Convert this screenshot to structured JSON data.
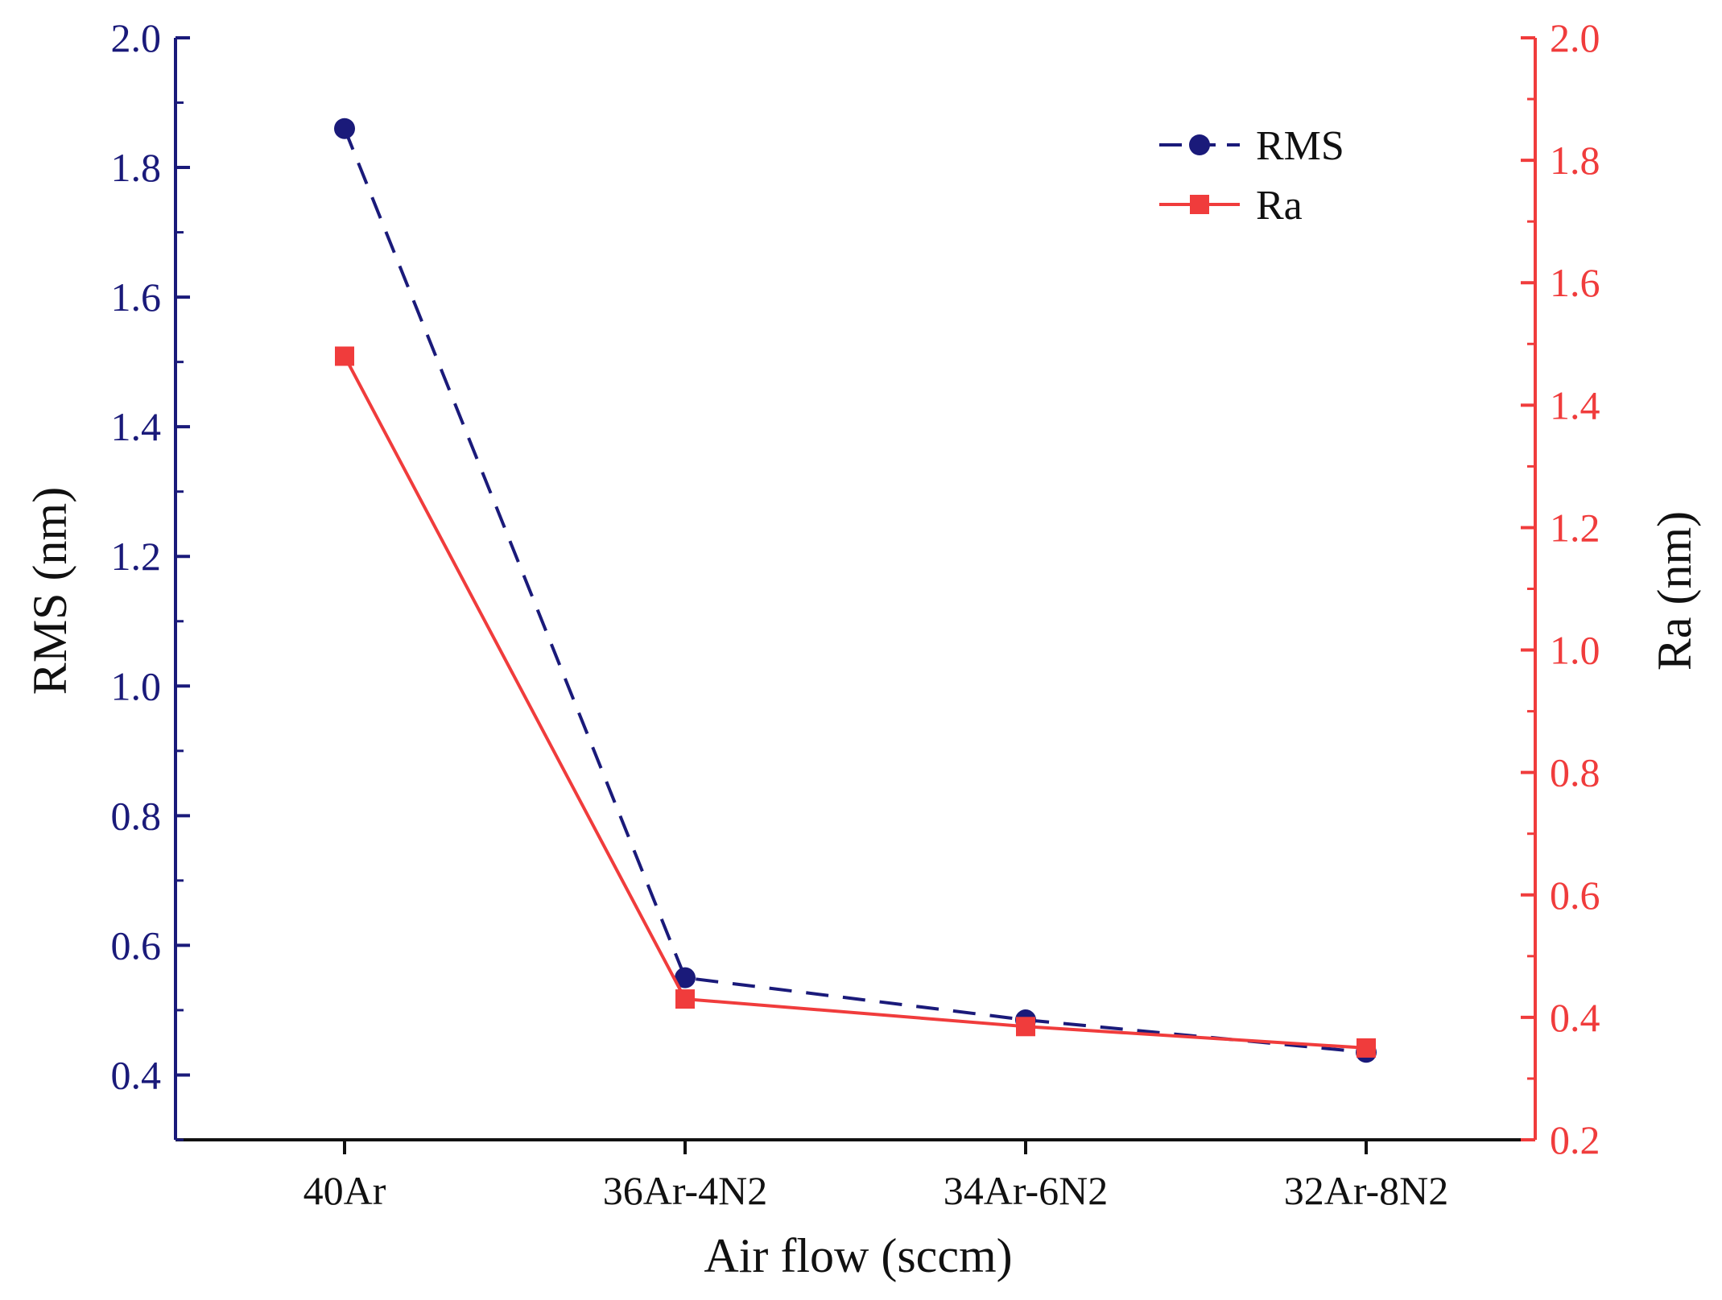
{
  "chart_data": {
    "type": "line",
    "title": "",
    "xlabel": "Air flow (sccm)",
    "ylabel_left": "RMS (nm)",
    "ylabel_right": "Ra (nm)",
    "categories": [
      "40Ar",
      "36Ar-4N2",
      "34Ar-6N2",
      "32Ar-8N2"
    ],
    "ylim_left": [
      0.3,
      2.0
    ],
    "ylim_right": [
      0.2,
      2.0
    ],
    "yticks_left": [
      "0.4",
      "0.6",
      "0.8",
      "1.0",
      "1.2",
      "1.4",
      "1.6",
      "1.8",
      "2.0"
    ],
    "yticks_right": [
      "0.2",
      "0.4",
      "0.6",
      "0.8",
      "1.0",
      "1.2",
      "1.4",
      "1.6",
      "1.8",
      "2.0"
    ],
    "grid": false,
    "legend_position": "top-right",
    "series": [
      {
        "name": "RMS",
        "axis": "left",
        "marker": "circle",
        "line": "dashed",
        "color": "#1a1a7a",
        "values": [
          1.86,
          0.55,
          0.485,
          0.435
        ]
      },
      {
        "name": "Ra",
        "axis": "right",
        "marker": "square",
        "line": "solid",
        "color": "#f03c3c",
        "values": [
          1.48,
          0.43,
          0.385,
          0.35
        ]
      }
    ]
  }
}
